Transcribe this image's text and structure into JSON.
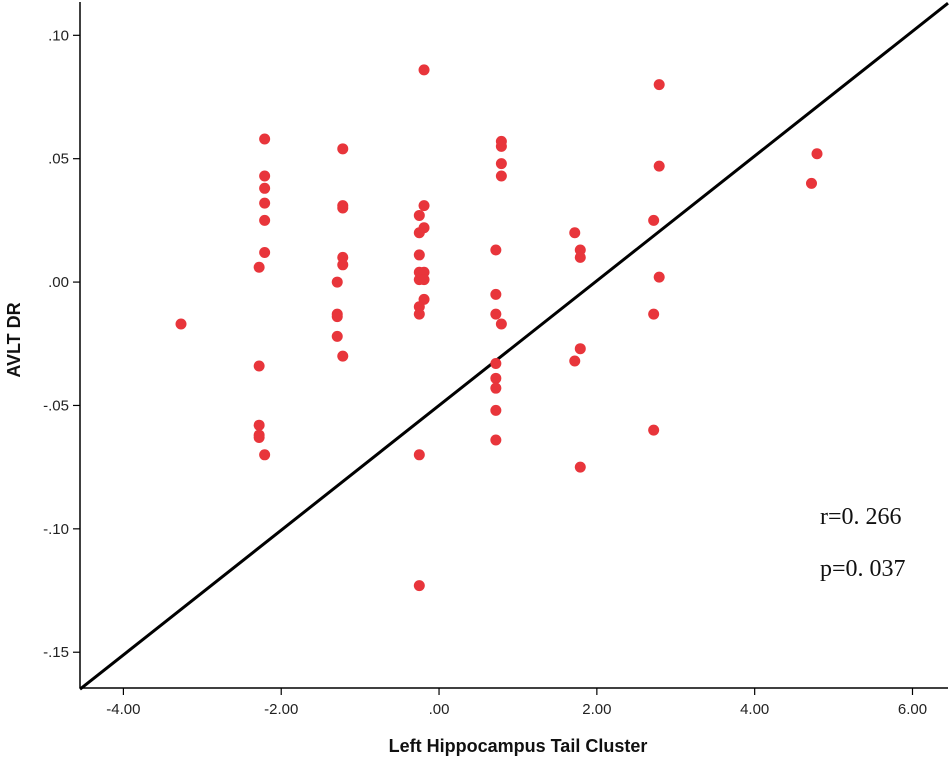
{
  "chart_data": {
    "type": "scatter",
    "xlabel": "Left Hippocampus Tail Cluster",
    "ylabel": "AVLT DR",
    "xlim": [
      -4.55,
      6.45
    ],
    "ylim": [
      -0.1645,
      0.1135
    ],
    "xticks": [
      {
        "value": -4.0,
        "label": "-4.00"
      },
      {
        "value": -2.0,
        "label": "-2.00"
      },
      {
        "value": 0.0,
        "label": ".00"
      },
      {
        "value": 2.0,
        "label": "2.00"
      },
      {
        "value": 4.0,
        "label": "4.00"
      },
      {
        "value": 6.0,
        "label": "6.00"
      }
    ],
    "yticks": [
      {
        "value": 0.1,
        "label": ".10"
      },
      {
        "value": 0.05,
        "label": ".05"
      },
      {
        "value": 0.0,
        "label": ".00"
      },
      {
        "value": -0.05,
        "label": "-.05"
      },
      {
        "value": -0.1,
        "label": "-.10"
      },
      {
        "value": -0.15,
        "label": "-.15"
      }
    ],
    "grid": false,
    "marker_color": "#e8353b",
    "line_color": "#000000",
    "fit_line": {
      "x": [
        -4.55,
        6.45
      ],
      "y": [
        -0.165,
        0.113
      ]
    },
    "points": [
      {
        "x": -3.27,
        "y": -0.017
      },
      {
        "x": -2.21,
        "y": 0.058
      },
      {
        "x": -2.21,
        "y": 0.043
      },
      {
        "x": -2.21,
        "y": 0.038
      },
      {
        "x": -2.21,
        "y": 0.032
      },
      {
        "x": -2.21,
        "y": 0.025
      },
      {
        "x": -2.21,
        "y": 0.012
      },
      {
        "x": -2.28,
        "y": 0.006
      },
      {
        "x": -2.28,
        "y": -0.034
      },
      {
        "x": -2.28,
        "y": -0.058
      },
      {
        "x": -2.28,
        "y": -0.062
      },
      {
        "x": -2.28,
        "y": -0.063
      },
      {
        "x": -2.21,
        "y": -0.07
      },
      {
        "x": -1.22,
        "y": 0.054
      },
      {
        "x": -1.22,
        "y": 0.031
      },
      {
        "x": -1.22,
        "y": 0.03
      },
      {
        "x": -1.22,
        "y": 0.01
      },
      {
        "x": -1.22,
        "y": 0.007
      },
      {
        "x": -1.29,
        "y": 0.0
      },
      {
        "x": -1.29,
        "y": -0.013
      },
      {
        "x": -1.29,
        "y": -0.014
      },
      {
        "x": -1.29,
        "y": -0.022
      },
      {
        "x": -1.22,
        "y": -0.03
      },
      {
        "x": -0.19,
        "y": 0.086
      },
      {
        "x": -0.19,
        "y": 0.031
      },
      {
        "x": -0.25,
        "y": 0.027
      },
      {
        "x": -0.19,
        "y": 0.022
      },
      {
        "x": -0.25,
        "y": 0.02
      },
      {
        "x": -0.25,
        "y": 0.011
      },
      {
        "x": -0.25,
        "y": 0.004
      },
      {
        "x": -0.19,
        "y": 0.004
      },
      {
        "x": -0.25,
        "y": 0.001
      },
      {
        "x": -0.19,
        "y": 0.001
      },
      {
        "x": -0.19,
        "y": -0.007
      },
      {
        "x": -0.25,
        "y": -0.01
      },
      {
        "x": -0.25,
        "y": -0.013
      },
      {
        "x": -0.25,
        "y": -0.07
      },
      {
        "x": -0.25,
        "y": -0.123
      },
      {
        "x": 0.79,
        "y": 0.057
      },
      {
        "x": 0.79,
        "y": 0.055
      },
      {
        "x": 0.79,
        "y": 0.048
      },
      {
        "x": 0.79,
        "y": 0.043
      },
      {
        "x": 0.72,
        "y": 0.013
      },
      {
        "x": 0.72,
        "y": -0.005
      },
      {
        "x": 0.72,
        "y": -0.013
      },
      {
        "x": 0.79,
        "y": -0.017
      },
      {
        "x": 0.72,
        "y": -0.033
      },
      {
        "x": 0.72,
        "y": -0.039
      },
      {
        "x": 0.72,
        "y": -0.043
      },
      {
        "x": 0.72,
        "y": -0.052
      },
      {
        "x": 0.72,
        "y": -0.064
      },
      {
        "x": 1.72,
        "y": 0.02
      },
      {
        "x": 1.79,
        "y": 0.013
      },
      {
        "x": 1.79,
        "y": 0.01
      },
      {
        "x": 1.79,
        "y": -0.027
      },
      {
        "x": 1.72,
        "y": -0.032
      },
      {
        "x": 1.79,
        "y": -0.075
      },
      {
        "x": 2.79,
        "y": 0.08
      },
      {
        "x": 2.79,
        "y": 0.047
      },
      {
        "x": 2.72,
        "y": 0.025
      },
      {
        "x": 2.79,
        "y": 0.002
      },
      {
        "x": 2.72,
        "y": -0.013
      },
      {
        "x": 2.72,
        "y": -0.06
      },
      {
        "x": 4.72,
        "y": 0.04
      },
      {
        "x": 4.79,
        "y": 0.052
      }
    ],
    "annotations": [
      "r=0. 266",
      "p=0. 037"
    ]
  }
}
